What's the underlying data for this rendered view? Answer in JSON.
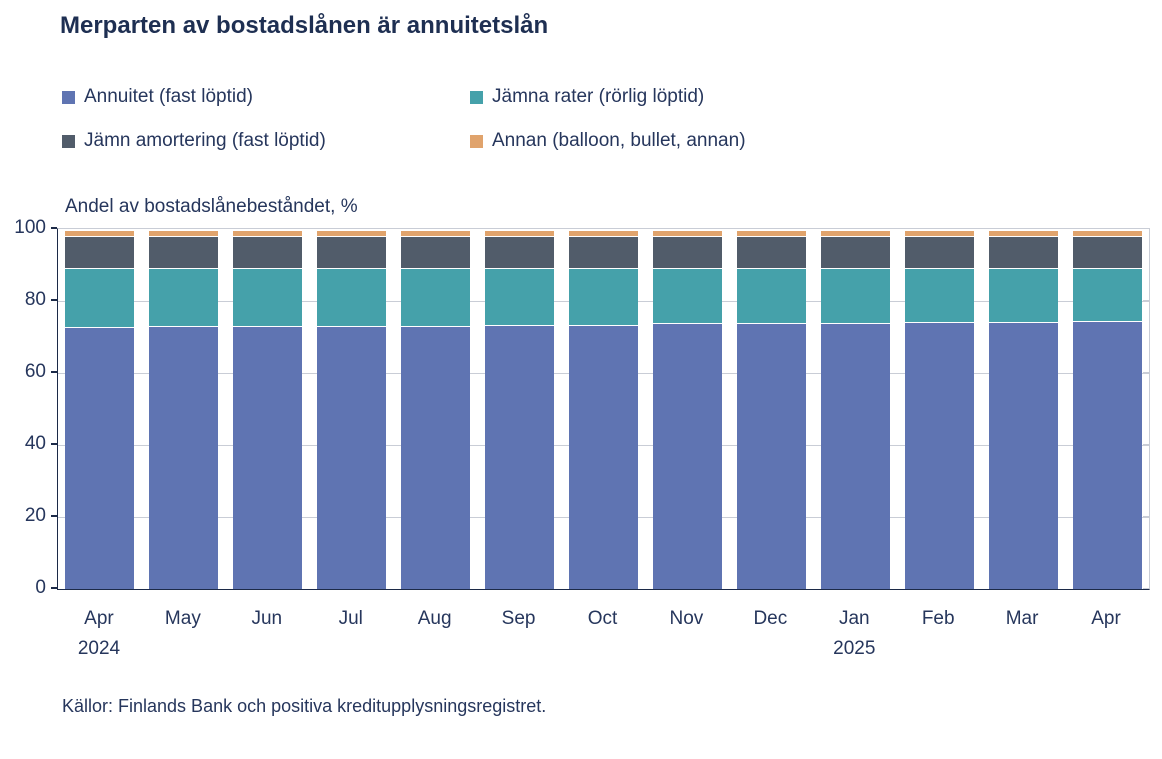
{
  "title": "Merparten av bostadslånen är annuitetslån",
  "source": "Källor: Finlands Bank och positiva kreditupplysningsregistret.",
  "colors": {
    "title": "#1e2f52",
    "text": "#26365c",
    "axis": "#1c2a48",
    "grid": "#c9cdd6",
    "background": "#ffffff",
    "annuitet": "#5f74b2",
    "jamna_rater": "#45a1aa",
    "jamn_amortering": "#515c6a",
    "annan": "#e0a36c"
  },
  "chart_data": {
    "type": "bar",
    "stacked": true,
    "title": "Merparten av bostadslånen är annuitetslån",
    "ylabel": "Andel av bostadslånebeståndet, %",
    "xlabel": "",
    "ylim": [
      0,
      100
    ],
    "yticks": [
      0,
      20,
      40,
      60,
      80,
      100
    ],
    "grid": true,
    "legend_position": "top",
    "categories": [
      "Apr",
      "May",
      "Jun",
      "Jul",
      "Aug",
      "Sep",
      "Oct",
      "Nov",
      "Dec",
      "Jan",
      "Feb",
      "Mar",
      "Apr"
    ],
    "category_year_labels": [
      {
        "index": 0,
        "label": "2024"
      },
      {
        "index": 9,
        "label": "2025"
      }
    ],
    "series": [
      {
        "name": "Annuitet (fast löptid)",
        "color": "#5f74b2",
        "values": [
          73.0,
          73.1,
          73.1,
          73.3,
          73.3,
          73.5,
          73.5,
          73.9,
          73.9,
          74.1,
          74.2,
          74.4,
          74.6
        ]
      },
      {
        "name": "Jämna rater (rörlig löptid)",
        "color": "#45a1aa",
        "values": [
          16.5,
          16.4,
          16.4,
          16.2,
          16.2,
          16.0,
          16.0,
          15.6,
          15.6,
          15.4,
          15.3,
          15.1,
          14.9
        ]
      },
      {
        "name": "Jämn amortering (fast löptid)",
        "color": "#515c6a",
        "values": [
          8.7,
          8.7,
          8.7,
          8.7,
          8.7,
          8.7,
          8.7,
          8.7,
          8.7,
          8.7,
          8.7,
          8.7,
          8.7
        ]
      },
      {
        "name": "Annan (balloon, bullet, annan)",
        "color": "#e0a36c",
        "values": [
          1.8,
          1.8,
          1.8,
          1.8,
          1.8,
          1.8,
          1.8,
          1.8,
          1.8,
          1.8,
          1.8,
          1.8,
          1.8
        ]
      }
    ]
  }
}
